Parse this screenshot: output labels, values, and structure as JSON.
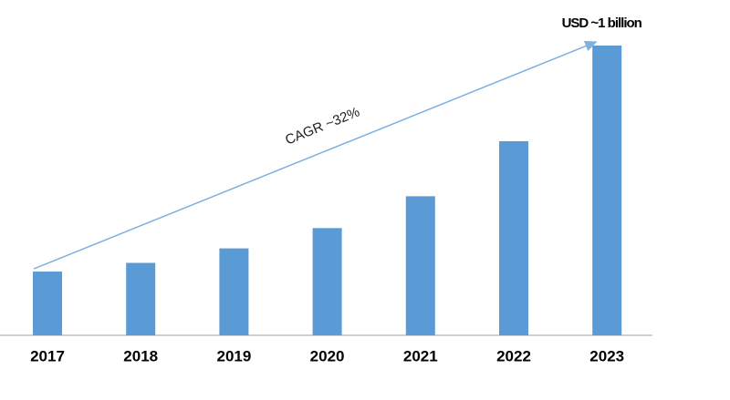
{
  "chart_data": {
    "type": "bar",
    "categories": [
      "2017",
      "2018",
      "2019",
      "2020",
      "2021",
      "2022",
      "2023"
    ],
    "values": [
      0.22,
      0.25,
      0.3,
      0.37,
      0.48,
      0.67,
      1
    ],
    "value_labels": [
      null,
      null,
      null,
      null,
      null,
      null,
      "USD ~1 billion"
    ],
    "color": "#5b9bd5",
    "annotation": "CAGR ~32%"
  }
}
